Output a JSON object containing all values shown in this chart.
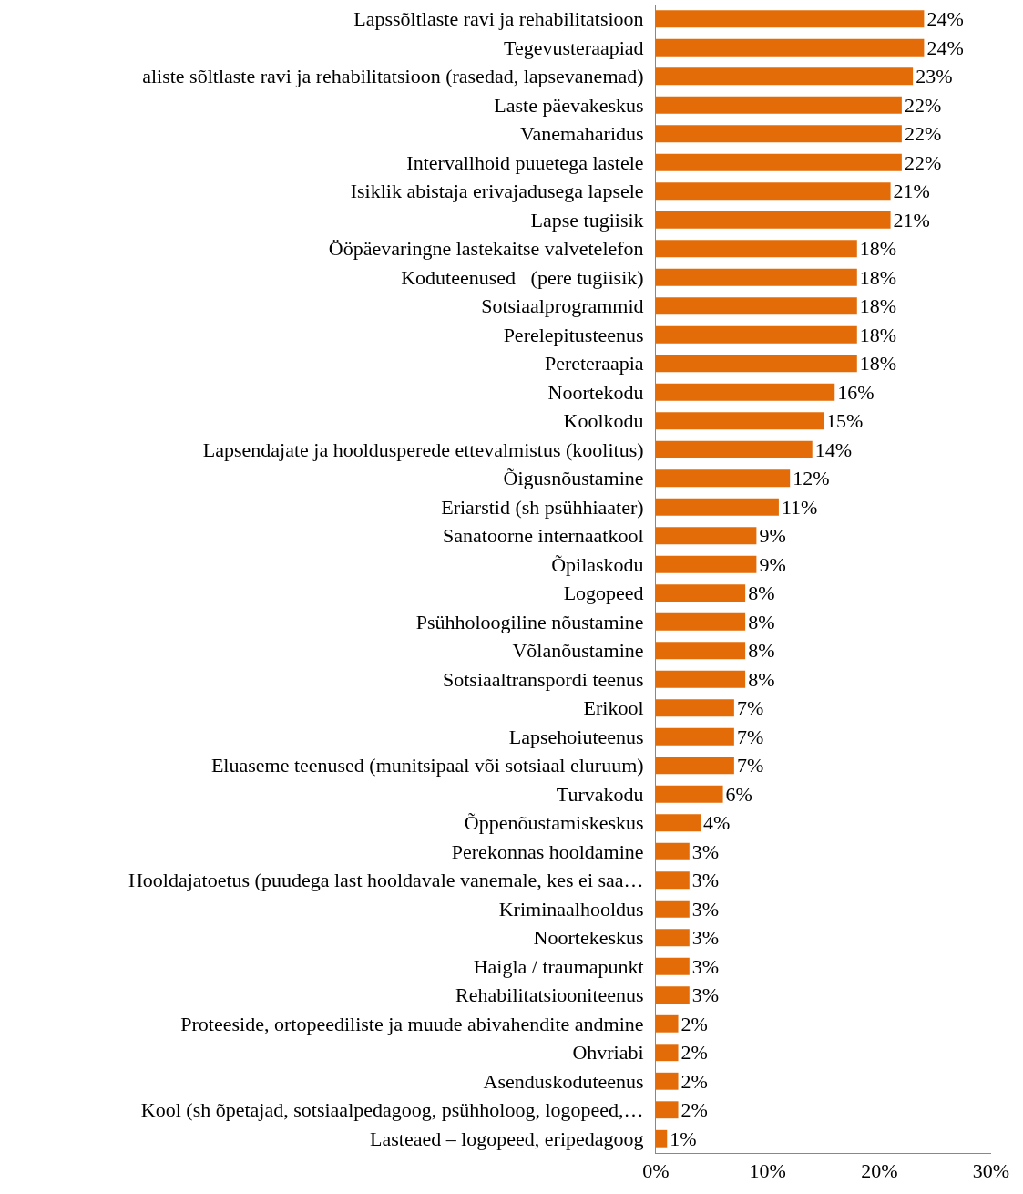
{
  "chart_data": {
    "type": "bar",
    "orientation": "horizontal",
    "color": "#e36c09",
    "categories": [
      "Lapssõltlaste ravi ja rehabilitatsioon",
      "Tegevusteraapiad",
      "aliste sõltlaste ravi ja rehabilitatsioon (rasedad, lapsevanemad)",
      "Laste päevakeskus",
      "Vanemaharidus",
      "Intervallhoid puuetega lastele",
      "Isiklik abistaja erivajadusega lapsele",
      "Lapse tugiisik",
      "Ööpäevaringne lastekaitse valvetelefon",
      "Koduteenused   (pere tugiisik)",
      "Sotsiaalprogrammid",
      "Perelepitusteenus",
      "Pereteraapia",
      "Noortekodu",
      "Koolkodu",
      "Lapsendajate ja hooldusperede ettevalmistus (koolitus)",
      "Õigusnõustamine",
      "Eriarstid (sh psühhiaater)",
      "Sanatoorne internaatkool",
      "Õpilaskodu",
      "Logopeed",
      "Psühholoogiline nõustamine",
      "Võlanõustamine",
      "Sotsiaaltranspordi teenus",
      "Erikool",
      "Lapsehoiuteenus",
      "Eluaseme teenused (munitsipaal või sotsiaal eluruum)",
      "Turvakodu",
      "Õppenõustamiskeskus",
      "Perekonnas hooldamine",
      "Hooldajatoetus (puudega last hooldavale vanemale, kes ei saa…",
      "Kriminaalhooldus",
      "Noortekeskus",
      "Haigla / traumapunkt",
      "Rehabilitatsiooniteenus",
      "Proteeside, ortopeediliste ja muude abivahendite andmine",
      "Ohvriabi",
      "Asenduskoduteenus",
      "Kool (sh õpetajad, sotsiaalpedagoog, psühholoog, logopeed,…",
      "Lasteaed – logopeed, eripedagoog"
    ],
    "values": [
      24,
      24,
      23,
      22,
      22,
      22,
      21,
      21,
      18,
      18,
      18,
      18,
      18,
      16,
      15,
      14,
      12,
      11,
      9,
      9,
      8,
      8,
      8,
      8,
      7,
      7,
      7,
      6,
      4,
      3,
      3,
      3,
      3,
      3,
      3,
      2,
      2,
      2,
      2,
      1
    ],
    "value_labels": [
      "24%",
      "24%",
      "23%",
      "22%",
      "22%",
      "22%",
      "21%",
      "21%",
      "18%",
      "18%",
      "18%",
      "18%",
      "18%",
      "16%",
      "15%",
      "14%",
      "12%",
      "11%",
      "9%",
      "9%",
      "8%",
      "8%",
      "8%",
      "8%",
      "7%",
      "7%",
      "7%",
      "6%",
      "4%",
      "3%",
      "3%",
      "3%",
      "3%",
      "3%",
      "3%",
      "2%",
      "2%",
      "2%",
      "2%",
      "1%"
    ],
    "xlim": [
      0,
      30
    ],
    "xticks": [
      {
        "value": 0,
        "label": "0%"
      },
      {
        "value": 10,
        "label": "10%"
      },
      {
        "value": 20,
        "label": "20%"
      },
      {
        "value": 30,
        "label": "30%"
      }
    ],
    "legend": false
  }
}
